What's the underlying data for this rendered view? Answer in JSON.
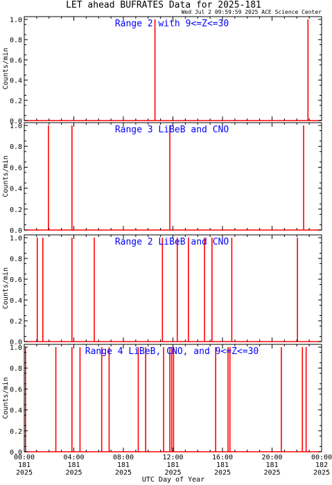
{
  "title": "LET ahead BUFRATES Data for 2025-181",
  "timestamp": "Wed Jul  2 09:59:59 2025 ACE Science Center",
  "xlabel": "UTC Day of Year",
  "colors": {
    "series": "#ff0000",
    "panel_label": "#0000ff",
    "frame": "#000000"
  },
  "chart_data": [
    {
      "type": "line",
      "label": "Range 2 with 9<=Z<=30",
      "ylabel": "Counts/min",
      "ylim": [
        0,
        1.0
      ],
      "yticks": [
        "0.0",
        "0.2",
        "0.4",
        "0.6",
        "0.8",
        "1.0"
      ],
      "xlim": [
        0,
        24
      ],
      "spikes": [
        10.55,
        22.9
      ]
    },
    {
      "type": "line",
      "label": "Range 3 LiBeB and CNO",
      "ylabel": "Counts/min",
      "ylim": [
        0,
        1.0
      ],
      "yticks": [
        "0.0",
        "0.2",
        "0.4",
        "0.6",
        "0.8",
        "1.0"
      ],
      "xlim": [
        0,
        24
      ],
      "spikes": [
        1.95,
        3.85,
        11.75,
        22.55
      ]
    },
    {
      "type": "line",
      "label": "Range 2 LiBeB and CNO",
      "ylabel": "Counts/min",
      "ylim": [
        0,
        1.0
      ],
      "yticks": [
        "0.0",
        "0.2",
        "0.4",
        "0.6",
        "0.8",
        "1.0"
      ],
      "xlim": [
        0,
        24
      ],
      "spikes": [
        1.05,
        1.5,
        3.85,
        5.65,
        11.15,
        12.35,
        13.25,
        14.55,
        15.15,
        16.75,
        22.05
      ]
    },
    {
      "type": "line",
      "label": "Range 4 LiBeB, CNO, and 9<=Z<=30",
      "ylabel": "Counts/min",
      "ylim": [
        0,
        1.0
      ],
      "yticks": [
        "0.0",
        "0.2",
        "0.4",
        "0.6",
        "0.8",
        "1.0"
      ],
      "xlim": [
        0,
        24
      ],
      "spikes": [
        0.1,
        2.55,
        3.85,
        4.5,
        6.25,
        6.85,
        9.2,
        9.8,
        11.25,
        11.75,
        11.9,
        12.05,
        15.45,
        16.45,
        16.6,
        20.75,
        22.45,
        22.75
      ]
    }
  ],
  "xticks": [
    {
      "hour": 0,
      "time": "00:00",
      "day": "181",
      "year": "2025"
    },
    {
      "hour": 4,
      "time": "04:00",
      "day": "181",
      "year": "2025"
    },
    {
      "hour": 8,
      "time": "08:00",
      "day": "181",
      "year": "2025"
    },
    {
      "hour": 12,
      "time": "12:00",
      "day": "181",
      "year": "2025"
    },
    {
      "hour": 16,
      "time": "16:00",
      "day": "181",
      "year": "2025"
    },
    {
      "hour": 20,
      "time": "20:00",
      "day": "181",
      "year": "2025"
    },
    {
      "hour": 24,
      "time": "00:00",
      "day": "182",
      "year": "2025"
    }
  ]
}
